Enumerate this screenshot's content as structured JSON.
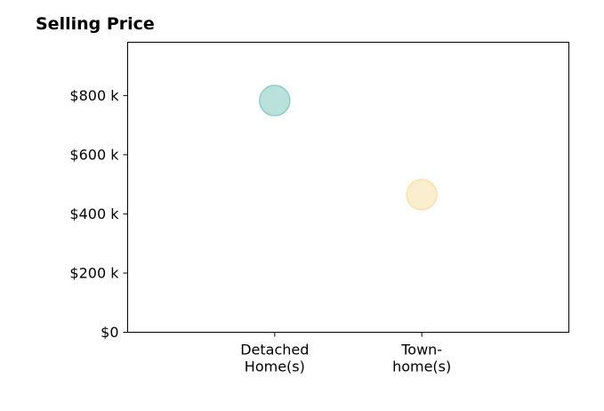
{
  "chart_data": {
    "type": "scatter",
    "title": "Selling Price",
    "xlabel": "",
    "ylabel": "",
    "categories": [
      {
        "lines": [
          "Detached",
          "Home(s)"
        ]
      },
      {
        "lines": [
          "Town-",
          "home(s)"
        ]
      }
    ],
    "points": [
      {
        "category_index": 0,
        "value": 783000,
        "color": "#8ecdc4"
      },
      {
        "category_index": 1,
        "value": 465000,
        "color": "#f6e2ad"
      }
    ],
    "ylim": [
      0,
      980000
    ],
    "xlim": [
      -1,
      2
    ],
    "yticks": [
      {
        "value": 0,
        "label": "$0"
      },
      {
        "value": 200000,
        "label": "$200 k"
      },
      {
        "value": 400000,
        "label": "$400 k"
      },
      {
        "value": 600000,
        "label": "$600 k"
      },
      {
        "value": 800000,
        "label": "$800 k"
      }
    ],
    "grid": false,
    "legend": "none"
  }
}
